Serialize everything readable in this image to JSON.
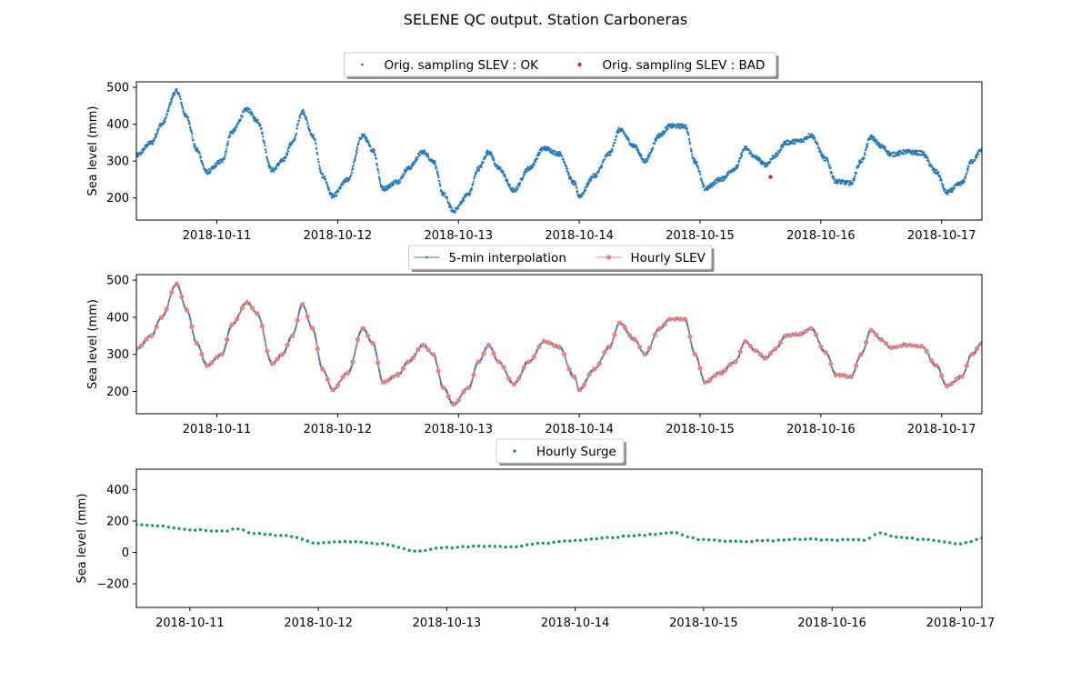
{
  "figure": {
    "title": "SELENE QC output. Station Carboneras",
    "colors": {
      "ok": "#2b7bb9",
      "bad": "#d62728",
      "interp": "#3a78b0",
      "hourly": "#f08080",
      "surge": "#1a9a5a"
    }
  },
  "chart_data": [
    {
      "type": "scatter",
      "ylabel": "Sea level (mm)",
      "xlim": [
        "2018-10-10 08:00",
        "2018-10-17 08:00"
      ],
      "ylim": [
        140,
        515
      ],
      "yticks": [
        200,
        300,
        400,
        500
      ],
      "xticks": [
        "2018-10-11",
        "2018-10-12",
        "2018-10-13",
        "2018-10-14",
        "2018-10-15",
        "2018-10-16",
        "2018-10-17"
      ],
      "grid": false,
      "legend": {
        "placement": "top-center",
        "entries": [
          "Orig. sampling SLEV : OK",
          "Orig. sampling SLEV : BAD"
        ]
      },
      "series": [
        {
          "name": "Orig. sampling SLEV : OK",
          "points": [
            [
              "2018-10-10 08:00",
              315
            ],
            [
              "2018-10-10 11:00",
              350
            ],
            [
              "2018-10-10 13:00",
              400
            ],
            [
              "2018-10-10 16:00",
              490
            ],
            [
              "2018-10-10 18:00",
              420
            ],
            [
              "2018-10-10 20:00",
              330
            ],
            [
              "2018-10-10 22:00",
              270
            ],
            [
              "2018-10-11 01:00",
              300
            ],
            [
              "2018-10-11 03:00",
              380
            ],
            [
              "2018-10-11 06:00",
              440
            ],
            [
              "2018-10-11 08:00",
              410
            ],
            [
              "2018-10-11 11:00",
              275
            ],
            [
              "2018-10-11 13:00",
              300
            ],
            [
              "2018-10-11 15:00",
              350
            ],
            [
              "2018-10-11 17:00",
              435
            ],
            [
              "2018-10-11 19:00",
              370
            ],
            [
              "2018-10-11 21:00",
              260
            ],
            [
              "2018-10-11 23:00",
              205
            ],
            [
              "2018-10-12 02:00",
              250
            ],
            [
              "2018-10-12 05:00",
              370
            ],
            [
              "2018-10-12 07:00",
              330
            ],
            [
              "2018-10-12 09:00",
              225
            ],
            [
              "2018-10-12 12:00",
              245
            ],
            [
              "2018-10-12 14:00",
              280
            ],
            [
              "2018-10-12 17:00",
              325
            ],
            [
              "2018-10-12 19:00",
              300
            ],
            [
              "2018-10-12 21:00",
              210
            ],
            [
              "2018-10-12 23:00",
              165
            ],
            [
              "2018-10-13 02:00",
              210
            ],
            [
              "2018-10-13 04:00",
              280
            ],
            [
              "2018-10-13 06:00",
              325
            ],
            [
              "2018-10-13 08:00",
              280
            ],
            [
              "2018-10-13 11:00",
              220
            ],
            [
              "2018-10-13 14:00",
              280
            ],
            [
              "2018-10-13 17:00",
              335
            ],
            [
              "2018-10-13 20:00",
              320
            ],
            [
              "2018-10-13 23:00",
              240
            ],
            [
              "2018-10-14 00:00",
              205
            ],
            [
              "2018-10-14 03:00",
              260
            ],
            [
              "2018-10-14 06:00",
              320
            ],
            [
              "2018-10-14 08:00",
              385
            ],
            [
              "2018-10-14 11:00",
              340
            ],
            [
              "2018-10-14 13:00",
              300
            ],
            [
              "2018-10-14 16:00",
              370
            ],
            [
              "2018-10-14 18:00",
              395
            ],
            [
              "2018-10-14 21:00",
              395
            ],
            [
              "2018-10-14 23:00",
              300
            ],
            [
              "2018-10-15 01:00",
              225
            ],
            [
              "2018-10-15 04:00",
              250
            ],
            [
              "2018-10-15 07:00",
              280
            ],
            [
              "2018-10-15 09:00",
              335
            ],
            [
              "2018-10-15 11:00",
              310
            ],
            [
              "2018-10-15 13:00",
              290
            ],
            [
              "2018-10-15 15:00",
              315
            ],
            [
              "2018-10-15 17:00",
              350
            ],
            [
              "2018-10-15 20:00",
              355
            ],
            [
              "2018-10-15 22:00",
              370
            ],
            [
              "2018-10-16 01:00",
              305
            ],
            [
              "2018-10-16 03:00",
              245
            ],
            [
              "2018-10-16 06:00",
              240
            ],
            [
              "2018-10-16 08:00",
              300
            ],
            [
              "2018-10-16 10:00",
              365
            ],
            [
              "2018-10-16 12:00",
              340
            ],
            [
              "2018-10-16 14:00",
              318
            ],
            [
              "2018-10-16 17:00",
              325
            ],
            [
              "2018-10-16 20:00",
              322
            ],
            [
              "2018-10-16 23:00",
              270
            ],
            [
              "2018-10-17 01:00",
              215
            ],
            [
              "2018-10-17 04:00",
              240
            ],
            [
              "2018-10-17 06:00",
              300
            ],
            [
              "2018-10-17 08:00",
              330
            ]
          ]
        },
        {
          "name": "Orig. sampling SLEV : BAD",
          "points": [
            [
              "2018-10-15 14:00",
              257
            ]
          ]
        }
      ]
    },
    {
      "type": "line",
      "ylabel": "Sea level (mm)",
      "xlim": [
        "2018-10-10 08:00",
        "2018-10-17 08:00"
      ],
      "ylim": [
        140,
        515
      ],
      "yticks": [
        200,
        300,
        400,
        500
      ],
      "xticks": [
        "2018-10-11",
        "2018-10-12",
        "2018-10-13",
        "2018-10-14",
        "2018-10-15",
        "2018-10-16",
        "2018-10-17"
      ],
      "grid": false,
      "legend": {
        "placement": "top-center",
        "entries": [
          "5-min interpolation",
          "Hourly SLEV"
        ]
      },
      "series": [
        {
          "name": "5-min interpolation",
          "interpolate_from": "orig"
        },
        {
          "name": "Hourly SLEV",
          "hourly_from": "orig"
        }
      ]
    },
    {
      "type": "scatter",
      "ylabel": "Sea level (mm)",
      "xlim": [
        "2018-10-10 14:00",
        "2018-10-17 04:00"
      ],
      "ylim": [
        -350,
        530
      ],
      "yticks": [
        -200,
        0,
        200,
        400
      ],
      "xticks": [
        "2018-10-11",
        "2018-10-12",
        "2018-10-13",
        "2018-10-14",
        "2018-10-15",
        "2018-10-16",
        "2018-10-17"
      ],
      "grid": false,
      "legend": {
        "placement": "top-center",
        "entries": [
          "Hourly Surge"
        ]
      },
      "series": [
        {
          "name": "Hourly Surge",
          "points": [
            [
              "2018-10-10 14:00",
              175
            ],
            [
              "2018-10-10 18:00",
              170
            ],
            [
              "2018-10-11 00:00",
              145
            ],
            [
              "2018-10-11 06:00",
              135
            ],
            [
              "2018-10-11 09:00",
              150
            ],
            [
              "2018-10-11 12:00",
              120
            ],
            [
              "2018-10-11 18:00",
              105
            ],
            [
              "2018-10-12 00:00",
              60
            ],
            [
              "2018-10-12 06:00",
              70
            ],
            [
              "2018-10-12 12:00",
              55
            ],
            [
              "2018-10-12 18:00",
              10
            ],
            [
              "2018-10-13 00:00",
              30
            ],
            [
              "2018-10-13 06:00",
              40
            ],
            [
              "2018-10-13 12:00",
              35
            ],
            [
              "2018-10-13 18:00",
              60
            ],
            [
              "2018-10-14 00:00",
              75
            ],
            [
              "2018-10-14 06:00",
              95
            ],
            [
              "2018-10-14 12:00",
              110
            ],
            [
              "2018-10-14 18:00",
              125
            ],
            [
              "2018-10-15 00:00",
              80
            ],
            [
              "2018-10-15 06:00",
              70
            ],
            [
              "2018-10-15 12:00",
              75
            ],
            [
              "2018-10-15 18:00",
              85
            ],
            [
              "2018-10-16 00:00",
              80
            ],
            [
              "2018-10-16 06:00",
              80
            ],
            [
              "2018-10-16 09:00",
              125
            ],
            [
              "2018-10-16 12:00",
              100
            ],
            [
              "2018-10-16 18:00",
              80
            ],
            [
              "2018-10-17 00:00",
              55
            ],
            [
              "2018-10-17 04:00",
              90
            ]
          ]
        }
      ]
    }
  ]
}
